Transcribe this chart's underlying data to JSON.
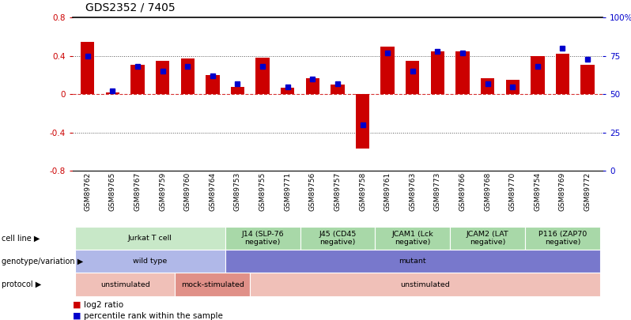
{
  "title": "GDS2352 / 7405",
  "samples": [
    "GSM89762",
    "GSM89765",
    "GSM89767",
    "GSM89759",
    "GSM89760",
    "GSM89764",
    "GSM89753",
    "GSM89755",
    "GSM89771",
    "GSM89756",
    "GSM89757",
    "GSM89758",
    "GSM89761",
    "GSM89763",
    "GSM89773",
    "GSM89766",
    "GSM89768",
    "GSM89770",
    "GSM89754",
    "GSM89769",
    "GSM89772"
  ],
  "log2_ratio": [
    0.55,
    0.02,
    0.31,
    0.35,
    0.37,
    0.2,
    0.08,
    0.38,
    0.07,
    0.17,
    0.1,
    -0.57,
    0.5,
    0.35,
    0.45,
    0.45,
    0.17,
    0.15,
    0.4,
    0.42,
    0.31
  ],
  "pct_rank": [
    75,
    52,
    68,
    65,
    68,
    62,
    57,
    68,
    55,
    60,
    57,
    30,
    77,
    65,
    78,
    77,
    57,
    55,
    68,
    80,
    73
  ],
  "bar_color": "#cc0000",
  "dot_color": "#0000cc",
  "ylim_left": [
    -0.8,
    0.8
  ],
  "ylim_right": [
    0,
    100
  ],
  "cell_line_groups": [
    {
      "label": "Jurkat T cell",
      "start": 0,
      "end": 6,
      "color": "#c8e8c8"
    },
    {
      "label": "J14 (SLP-76\nnegative)",
      "start": 6,
      "end": 9,
      "color": "#a8d8a8"
    },
    {
      "label": "J45 (CD45\nnegative)",
      "start": 9,
      "end": 12,
      "color": "#a8d8a8"
    },
    {
      "label": "JCAM1 (Lck\nnegative)",
      "start": 12,
      "end": 15,
      "color": "#a8d8a8"
    },
    {
      "label": "JCAM2 (LAT\nnegative)",
      "start": 15,
      "end": 18,
      "color": "#a8d8a8"
    },
    {
      "label": "P116 (ZAP70\nnegative)",
      "start": 18,
      "end": 21,
      "color": "#a8d8a8"
    }
  ],
  "genotype_groups": [
    {
      "label": "wild type",
      "start": 0,
      "end": 6,
      "color": "#b0b8e8"
    },
    {
      "label": "mutant",
      "start": 6,
      "end": 21,
      "color": "#7878cc"
    }
  ],
  "protocol_groups": [
    {
      "label": "unstimulated",
      "start": 0,
      "end": 4,
      "color": "#f0c0b8"
    },
    {
      "label": "mock-stimulated",
      "start": 4,
      "end": 7,
      "color": "#e09088"
    },
    {
      "label": "unstimulated",
      "start": 7,
      "end": 21,
      "color": "#f0c0b8"
    }
  ],
  "row_labels": [
    "cell line",
    "genotype/variation",
    "protocol"
  ],
  "legend_items": [
    {
      "color": "#cc0000",
      "label": "log2 ratio"
    },
    {
      "color": "#0000cc",
      "label": "percentile rank within the sample"
    }
  ]
}
